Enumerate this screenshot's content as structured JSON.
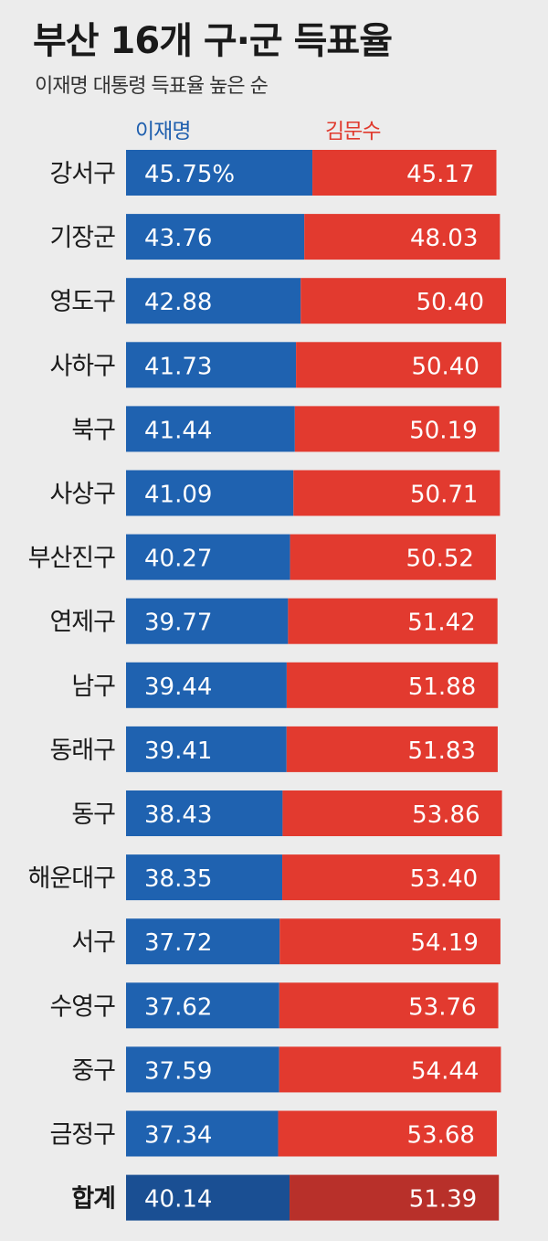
{
  "title": "부산 16개 구·군 득표율",
  "subtitle": "이재명 대통령 득표율 높은 순",
  "colors": {
    "a": "#1f62b0",
    "b": "#e23a2f",
    "a_total": "#1a4f93",
    "b_total": "#b8302a"
  },
  "chart_data": {
    "type": "bar",
    "stacked": true,
    "orientation": "horizontal",
    "legend": [
      "이재명",
      "김문수"
    ],
    "categories": [
      "강서구",
      "기장군",
      "영도구",
      "사하구",
      "북구",
      "사상구",
      "부산진구",
      "연제구",
      "남구",
      "동래구",
      "동구",
      "해운대구",
      "서구",
      "수영구",
      "중구",
      "금정구",
      "합계"
    ],
    "series": [
      {
        "name": "이재명",
        "values": [
          45.75,
          43.76,
          42.88,
          41.73,
          41.44,
          41.09,
          40.27,
          39.77,
          39.44,
          39.41,
          38.43,
          38.35,
          37.72,
          37.62,
          37.59,
          37.34,
          40.14
        ]
      },
      {
        "name": "김문수",
        "values": [
          45.17,
          48.03,
          50.4,
          50.4,
          50.19,
          50.71,
          50.52,
          51.42,
          51.88,
          51.83,
          53.86,
          53.4,
          54.19,
          53.76,
          54.44,
          53.68,
          51.39
        ]
      }
    ],
    "labels_a": [
      "45.75%",
      "43.76",
      "42.88",
      "41.73",
      "41.44",
      "41.09",
      "40.27",
      "39.77",
      "39.44",
      "39.41",
      "38.43",
      "38.35",
      "37.72",
      "37.62",
      "37.59",
      "37.34",
      "40.14"
    ],
    "labels_b": [
      "45.17",
      "48.03",
      "50.40",
      "50.40",
      "50.19",
      "50.71",
      "50.52",
      "51.42",
      "51.88",
      "51.83",
      "53.86",
      "53.40",
      "54.19",
      "53.76",
      "54.44",
      "53.68",
      "51.39"
    ]
  }
}
